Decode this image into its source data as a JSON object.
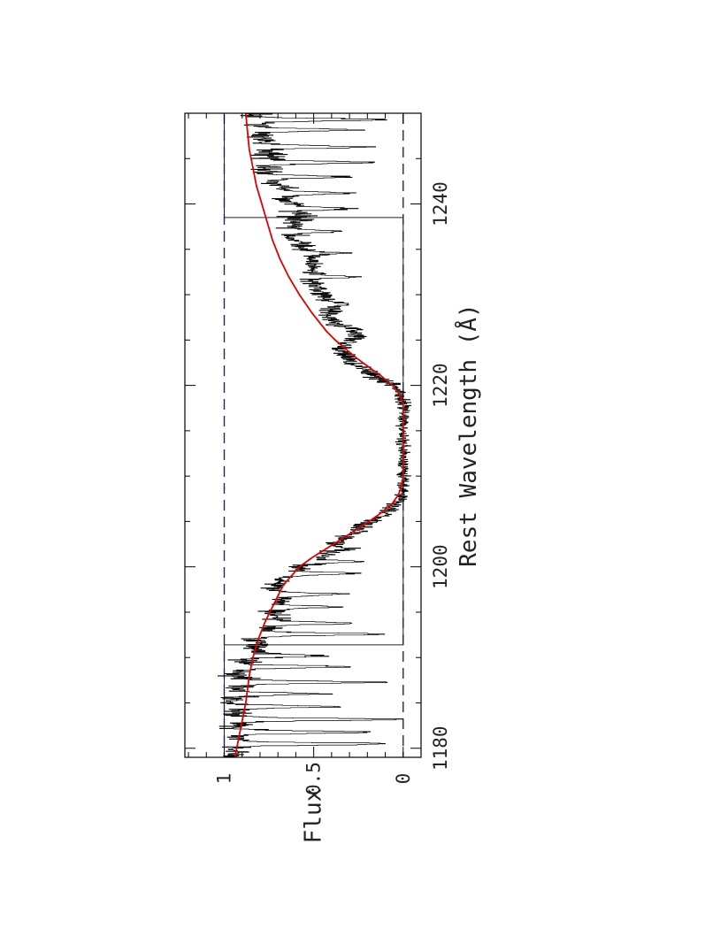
{
  "chart_data": {
    "type": "line",
    "orientation": "rotated 90 degrees (x axis runs bottom-to-top, flux increases to the left)",
    "xlabel": "Rest Wavelength (Å)",
    "ylabel": "Flux",
    "xlim": [
      1179,
      1250
    ],
    "ylim": [
      -0.1,
      1.22
    ],
    "x_ticks": [
      1180,
      1200,
      1220,
      1240
    ],
    "x_tick_labels": [
      "1180",
      "1200",
      "1220",
      "1240"
    ],
    "x_minor_step": 5,
    "y_ticks": [
      1,
      0.5,
      0
    ],
    "y_tick_labels": [
      "1",
      "0.5",
      "0"
    ],
    "reference_lines": [
      {
        "name": "continuum level",
        "y": 1,
        "style": "dashed",
        "color": "#1a237e"
      },
      {
        "name": "zero level",
        "y": 0,
        "style": "dashed",
        "color": "#1a237e"
      }
    ],
    "error_step": {
      "color": "#222222",
      "segments": [
        {
          "x0": 1179,
          "x1": 1191.4,
          "y": 1.0
        },
        {
          "x0": 1191.4,
          "x1": 1238.5,
          "y": 0.0
        },
        {
          "x0": 1238.5,
          "x1": 1250,
          "y": 1.0
        }
      ]
    },
    "series": [
      {
        "color": "#000000",
        "style": "noisy histogram",
        "anchors": [
          [
            1179.0,
            0.95
          ],
          [
            1180.5,
            0.92
          ],
          [
            1181.5,
            0.9
          ],
          [
            1183.0,
            0.95
          ],
          [
            1184.5,
            0.93
          ],
          [
            1186.0,
            0.95
          ],
          [
            1188.0,
            0.92
          ],
          [
            1189.5,
            0.9
          ],
          [
            1190.5,
            0.82
          ],
          [
            1192.0,
            0.82
          ],
          [
            1193.5,
            0.72
          ],
          [
            1195.0,
            0.72
          ],
          [
            1196.5,
            0.68
          ],
          [
            1198.0,
            0.72
          ],
          [
            1199.5,
            0.62
          ],
          [
            1201.0,
            0.45
          ],
          [
            1202.5,
            0.38
          ],
          [
            1203.5,
            0.28
          ],
          [
            1204.5,
            0.22
          ],
          [
            1205.5,
            0.12
          ],
          [
            1206.5,
            0.05
          ],
          [
            1208.0,
            0.0
          ],
          [
            1210.0,
            0.0
          ],
          [
            1212.0,
            0.0
          ],
          [
            1214.0,
            0.0
          ],
          [
            1216.0,
            0.0
          ],
          [
            1218.0,
            0.0
          ],
          [
            1219.5,
            0.02
          ],
          [
            1221.0,
            0.15
          ],
          [
            1222.5,
            0.3
          ],
          [
            1224.0,
            0.35
          ],
          [
            1225.5,
            0.25
          ],
          [
            1227.0,
            0.4
          ],
          [
            1228.5,
            0.4
          ],
          [
            1230.0,
            0.45
          ],
          [
            1231.5,
            0.5
          ],
          [
            1233.0,
            0.5
          ],
          [
            1235.0,
            0.55
          ],
          [
            1236.5,
            0.62
          ],
          [
            1238.0,
            0.6
          ],
          [
            1239.5,
            0.6
          ],
          [
            1241.0,
            0.65
          ],
          [
            1242.5,
            0.72
          ],
          [
            1244.0,
            0.78
          ],
          [
            1245.5,
            0.75
          ],
          [
            1247.0,
            0.8
          ],
          [
            1248.5,
            0.82
          ],
          [
            1250.0,
            0.82
          ]
        ],
        "absorption_features": [
          {
            "x": 1180.5,
            "depth": 0.9
          },
          {
            "x": 1181.8,
            "depth": 0.8
          },
          {
            "x": 1183.2,
            "depth": 1.0
          },
          {
            "x": 1184.6,
            "depth": 0.6
          },
          {
            "x": 1186.0,
            "depth": 0.5
          },
          {
            "x": 1187.3,
            "depth": 0.9
          },
          {
            "x": 1189.0,
            "depth": 0.7
          },
          {
            "x": 1190.2,
            "depth": 0.5
          },
          {
            "x": 1192.6,
            "depth": 0.85
          },
          {
            "x": 1193.8,
            "depth": 0.6
          },
          {
            "x": 1195.6,
            "depth": 0.45
          },
          {
            "x": 1197.0,
            "depth": 0.55
          },
          {
            "x": 1199.3,
            "depth": 0.6
          },
          {
            "x": 1200.6,
            "depth": 0.5
          },
          {
            "x": 1202.0,
            "depth": 0.35
          },
          {
            "x": 1226.2,
            "depth": 0.25
          },
          {
            "x": 1229.0,
            "depth": 0.3
          },
          {
            "x": 1232.0,
            "depth": 0.4
          },
          {
            "x": 1234.6,
            "depth": 0.35
          },
          {
            "x": 1237.0,
            "depth": 0.45
          },
          {
            "x": 1239.5,
            "depth": 0.5
          },
          {
            "x": 1241.2,
            "depth": 0.55
          },
          {
            "x": 1243.0,
            "depth": 0.6
          },
          {
            "x": 1244.6,
            "depth": 0.7
          },
          {
            "x": 1246.3,
            "depth": 0.75
          },
          {
            "x": 1248.2,
            "depth": 0.7
          },
          {
            "x": 1249.3,
            "depth": 0.9
          }
        ]
      },
      {
        "color": "#e00000",
        "style": "smooth model profile",
        "points": [
          [
            1179.0,
            0.94
          ],
          [
            1182.0,
            0.91
          ],
          [
            1185.0,
            0.88
          ],
          [
            1188.0,
            0.86
          ],
          [
            1190.0,
            0.84
          ],
          [
            1192.0,
            0.81
          ],
          [
            1194.0,
            0.77
          ],
          [
            1196.0,
            0.72
          ],
          [
            1198.0,
            0.67
          ],
          [
            1200.0,
            0.58
          ],
          [
            1201.0,
            0.51
          ],
          [
            1202.0,
            0.43
          ],
          [
            1203.0,
            0.35
          ],
          [
            1204.0,
            0.27
          ],
          [
            1205.0,
            0.19
          ],
          [
            1206.0,
            0.12
          ],
          [
            1207.0,
            0.06
          ],
          [
            1208.0,
            0.025
          ],
          [
            1209.0,
            0.008
          ],
          [
            1210.0,
            0.0
          ],
          [
            1218.0,
            0.0
          ],
          [
            1219.0,
            0.02
          ],
          [
            1220.0,
            0.06
          ],
          [
            1221.0,
            0.12
          ],
          [
            1222.0,
            0.19
          ],
          [
            1223.0,
            0.26
          ],
          [
            1224.0,
            0.32
          ],
          [
            1225.0,
            0.38
          ],
          [
            1226.0,
            0.43
          ],
          [
            1228.0,
            0.51
          ],
          [
            1230.0,
            0.58
          ],
          [
            1232.0,
            0.64
          ],
          [
            1234.0,
            0.69
          ],
          [
            1236.0,
            0.73
          ],
          [
            1238.0,
            0.76
          ],
          [
            1240.0,
            0.79
          ],
          [
            1242.0,
            0.82
          ],
          [
            1244.0,
            0.84
          ],
          [
            1246.0,
            0.86
          ],
          [
            1248.0,
            0.87
          ],
          [
            1250.0,
            0.88
          ]
        ]
      }
    ]
  }
}
